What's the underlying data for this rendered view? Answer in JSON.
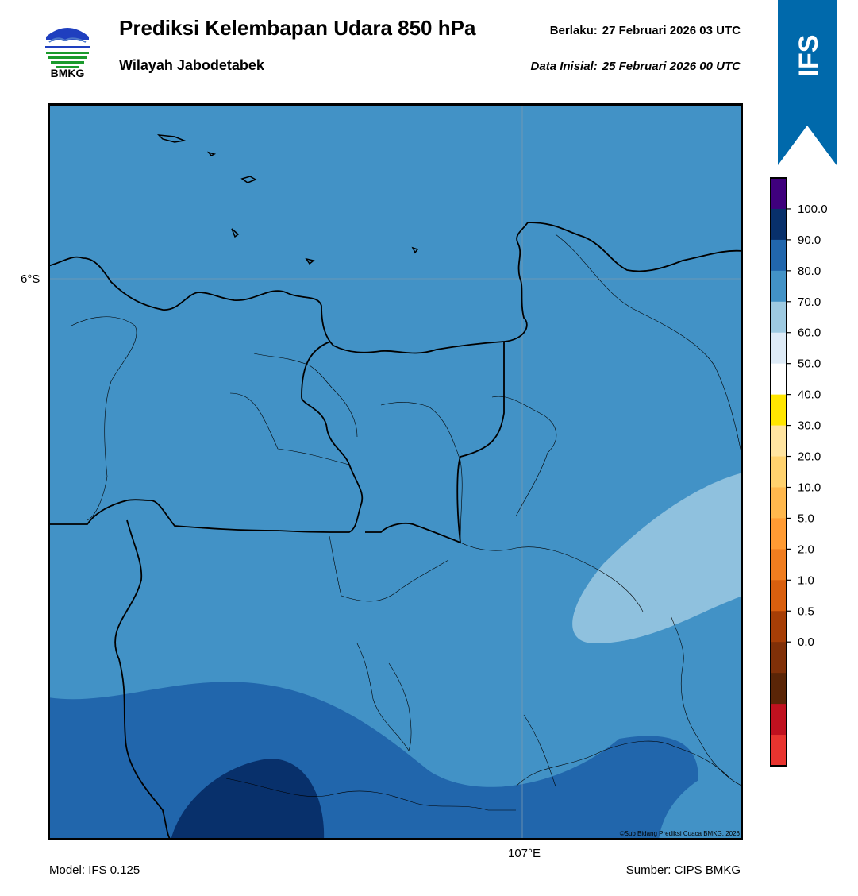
{
  "header": {
    "org_label": "BMKG",
    "title": "Prediksi Kelembapan Udara 850 hPa",
    "region": "Wilayah Jabodetabek",
    "valid_label": "Berlaku:",
    "valid_time": "27 Februari 2026 03 UTC",
    "init_label": "Data Inisial:",
    "init_time": "25 Februari 2026 00 UTC"
  },
  "banner": {
    "text": "IFS",
    "color": "#0069ab"
  },
  "map": {
    "lat_label": "6°S",
    "lon_label": "107°E",
    "copyright": "©Sub Bidang Prediksi Cuaca BMKG, 2026",
    "background_level": "70.0–80.0",
    "fill_colors": {
      "base": "#4292c6",
      "light": "#8fc1de",
      "mid": "#2166ac",
      "dark": "#08306b"
    }
  },
  "legend": {
    "tick_labels": [
      "100.0",
      "90.0",
      "80.0",
      "70.0",
      "60.0",
      "50.0",
      "40.0",
      "30.0",
      "20.0",
      "10.0",
      "5.0",
      "2.0",
      "1.0",
      "0.5",
      "0.0"
    ],
    "colors": [
      "#3f007d",
      "#08306b",
      "#2166ac",
      "#4292c6",
      "#9ecae1",
      "#deebf7",
      "#ffffff",
      "#ffe600",
      "#ffe4a0",
      "#ffd26e",
      "#ffb84d",
      "#ff9b33",
      "#f07d1f",
      "#d95f0e",
      "#a63e06",
      "#803008",
      "#5a2507",
      "#c0111f",
      "#e8342f"
    ]
  },
  "footer": {
    "model": "Model: IFS 0.125",
    "source": "Sumber: CIPS BMKG"
  }
}
